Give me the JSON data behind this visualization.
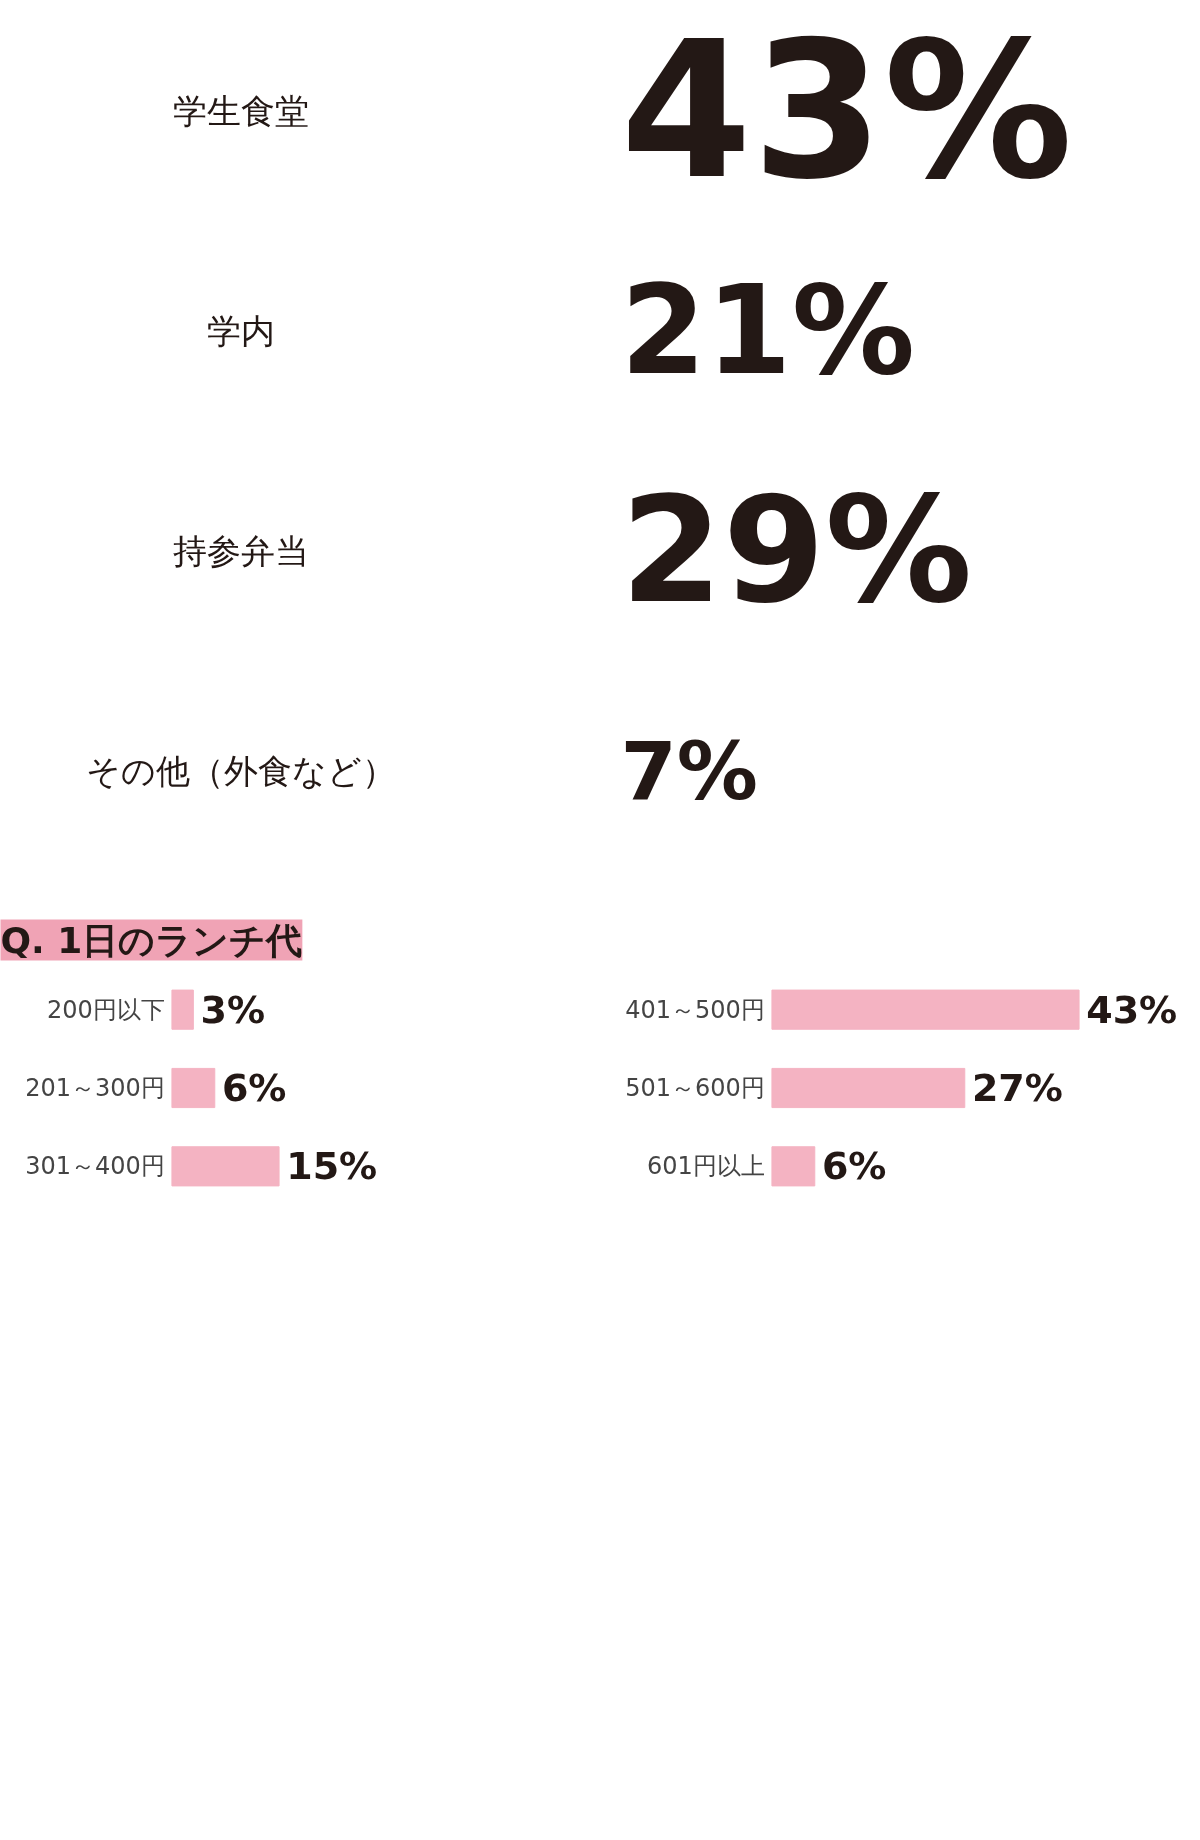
{
  "chart_data": [
    {
      "type": "other",
      "categories": [
        "学生食堂",
        "学内",
        "持参弁当",
        "その他（外食など）"
      ],
      "values": [
        43,
        21,
        29,
        7
      ],
      "value_labels": [
        "43%",
        "21%",
        "29%",
        "7%"
      ]
    },
    {
      "type": "bar",
      "title": "Q. 1日のランチ代",
      "orientation": "horizontal",
      "categories": [
        "200円以下",
        "201～300円",
        "301～400円"
      ],
      "values": [
        3,
        6,
        15
      ],
      "value_labels": [
        "3%",
        "6%",
        "15%"
      ],
      "color": "#f4b3c2"
    },
    {
      "type": "bar",
      "orientation": "horizontal",
      "categories": [
        "401～500円",
        "501～600円",
        "601円以上"
      ],
      "values": [
        43,
        27,
        6
      ],
      "value_labels": [
        "43%",
        "27%",
        "6%"
      ],
      "color": "#f4b3c2"
    }
  ]
}
